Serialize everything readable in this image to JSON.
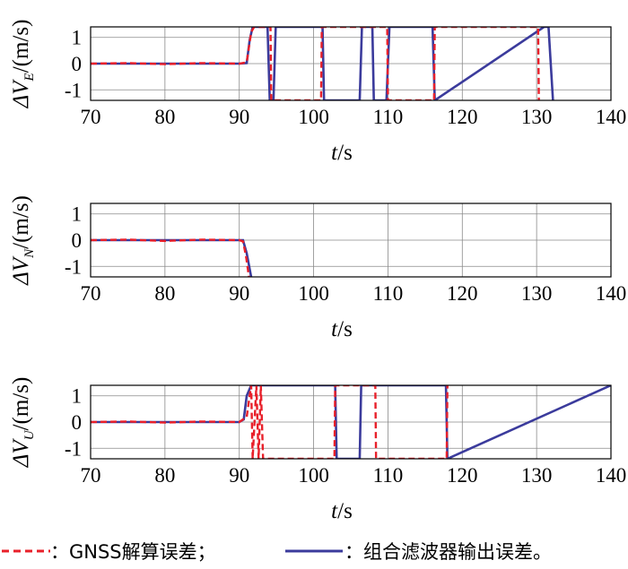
{
  "chart_data": [
    {
      "type": "line",
      "name": "ve",
      "ylabel_main": "ΔV",
      "ylabel_sub": "E",
      "ylabel_unit": "/(m/s)",
      "xlabel_main": "t",
      "xlabel_unit": "/s",
      "xlim": [
        70,
        140
      ],
      "ylim": [
        -1.4,
        1.4
      ],
      "xticks": [
        "70",
        "80",
        "90",
        "100",
        "110",
        "120",
        "130",
        "140"
      ],
      "yticks": [
        "1",
        "0",
        "-1"
      ],
      "grid": true,
      "series": [
        {
          "kind": "filter",
          "x": [
            70,
            75,
            80,
            85,
            90,
            91,
            91.4,
            91.8,
            92.4,
            93.8,
            94.1,
            94.6,
            94.9,
            95.2,
            101.2,
            101.4,
            106.2,
            106.5,
            107.9,
            108.1,
            109.8,
            110.2,
            116,
            116.3,
            131,
            131.6,
            132.2
          ],
          "y": [
            0,
            0,
            0,
            0,
            0,
            0.02,
            0.9,
            1.4,
            1.4,
            1.4,
            -1.4,
            -1.4,
            1.4,
            1.4,
            1.4,
            -1.4,
            -1.4,
            1.4,
            1.4,
            -1.4,
            -1.4,
            1.4,
            1.4,
            -1.4,
            1.4,
            1.4,
            -1.4
          ]
        },
        {
          "kind": "gnss",
          "x": [
            70,
            75,
            80,
            85,
            90,
            91,
            91.6,
            92,
            92.1,
            94.2,
            94.3,
            101,
            101.1,
            109.9,
            110,
            116.2,
            116.3,
            130.2,
            130.3
          ],
          "y": [
            0,
            0.02,
            -0.02,
            0.02,
            0,
            0.05,
            1.2,
            1.4,
            1.4,
            1.4,
            -1.4,
            -1.4,
            1.4,
            1.4,
            -1.4,
            -1.4,
            1.4,
            1.4,
            -1.4
          ]
        }
      ]
    },
    {
      "type": "line",
      "name": "vn",
      "ylabel_main": "ΔV",
      "ylabel_sub": "N",
      "ylabel_unit": "/(m/s)",
      "xlabel_main": "t",
      "xlabel_unit": "/s",
      "xlim": [
        70,
        140
      ],
      "ylim": [
        -1.4,
        1.4
      ],
      "xticks": [
        "70",
        "80",
        "90",
        "100",
        "110",
        "120",
        "130",
        "140"
      ],
      "yticks": [
        "1",
        "0",
        "-1"
      ],
      "grid": true,
      "series": [
        {
          "kind": "filter",
          "x": [
            70,
            75,
            80,
            85,
            90,
            90.5,
            91,
            91.6
          ],
          "y": [
            0,
            0,
            0,
            0,
            0,
            0,
            -0.5,
            -1.4
          ]
        },
        {
          "kind": "gnss",
          "x": [
            70,
            75,
            80,
            85,
            90,
            90.5,
            90.9,
            91.3
          ],
          "y": [
            0,
            0.02,
            -0.03,
            0.02,
            0,
            -0.05,
            -0.6,
            -1.4
          ]
        }
      ]
    },
    {
      "type": "line",
      "name": "vu",
      "ylabel_main": "ΔV",
      "ylabel_sub": "U",
      "ylabel_unit": "/(m/s)",
      "xlabel_main": "t",
      "xlabel_unit": "/s",
      "xlim": [
        70,
        140
      ],
      "ylim": [
        -1.4,
        1.4
      ],
      "xticks": [
        "70",
        "80",
        "90",
        "100",
        "110",
        "120",
        "130",
        "140"
      ],
      "yticks": [
        "1",
        "0",
        "-1"
      ],
      "grid": true,
      "series": [
        {
          "kind": "filter",
          "x": [
            70,
            75,
            80,
            85,
            90,
            90.6,
            91,
            91.6,
            102.9,
            103.1,
            106.2,
            106.4,
            117.8,
            118,
            140
          ],
          "y": [
            0,
            0,
            0,
            0,
            0,
            0.1,
            1.0,
            1.4,
            1.4,
            -1.4,
            -1.4,
            1.4,
            1.4,
            -1.4,
            1.4
          ]
        },
        {
          "kind": "gnss",
          "x": [
            70,
            75,
            80,
            85,
            90,
            91,
            91.6,
            91.8,
            92.3,
            92.6,
            92.9,
            93.2,
            102.8,
            102.9,
            108.3,
            108.4,
            117.9,
            118
          ],
          "y": [
            0,
            0.02,
            -0.02,
            0.02,
            0,
            0.2,
            1.4,
            -1.4,
            1.4,
            -1.4,
            1.4,
            -1.4,
            -1.4,
            1.4,
            1.4,
            -1.4,
            -1.4,
            1.4
          ]
        }
      ]
    }
  ],
  "legend": {
    "gnss_label": "：GNSS解算误差；",
    "filter_label": "：组合滤波器输出误差。",
    "gnss_color": "#e8202a",
    "filter_color": "#3b3b9c"
  }
}
